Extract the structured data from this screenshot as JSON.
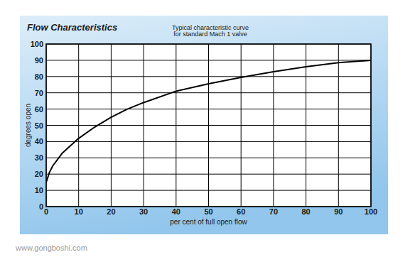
{
  "chart_data": {
    "type": "line",
    "title": "Flow Characteristics",
    "subtitle": [
      "Typical characteristic curve",
      "for standard Mach 1 valve"
    ],
    "x_label": "per cent of full open flow",
    "y_label": "degrees open",
    "x": [
      0,
      1,
      2,
      5,
      10,
      15,
      20,
      25,
      30,
      40,
      50,
      60,
      70,
      80,
      90,
      100
    ],
    "series": [
      {
        "name": "Typical characteristic curve",
        "color": "#000000",
        "values": [
          15,
          21,
          25,
          33,
          42,
          49,
          55,
          60,
          64,
          71,
          75.5,
          79.5,
          83,
          86,
          88.5,
          90
        ]
      }
    ],
    "xlim": [
      0,
      100
    ],
    "ylim": [
      0,
      100
    ],
    "xticks": [
      0,
      10,
      20,
      30,
      40,
      50,
      60,
      70,
      80,
      90,
      100
    ],
    "yticks": [
      0,
      10,
      20,
      30,
      40,
      50,
      60,
      70,
      80,
      90,
      100
    ],
    "grid": true,
    "annotations": [
      "www.gongboshi.com"
    ]
  }
}
